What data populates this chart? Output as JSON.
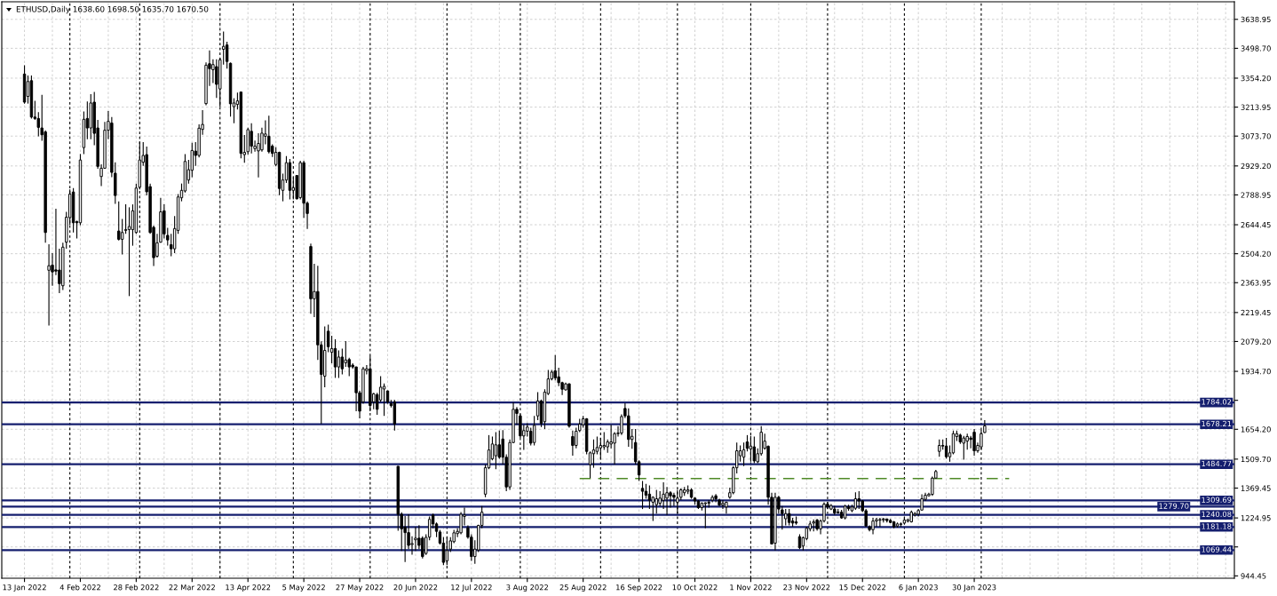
{
  "chart_data": {
    "type": "candlestick",
    "title": "ETHUSD,Daily 1638.60 1698.50 1635.70 1670.50",
    "color": "#000000",
    "categories": [
      "13 Jan 2022",
      null,
      null,
      null,
      null,
      null,
      null,
      null,
      null,
      null,
      null,
      null,
      null,
      null,
      null,
      null,
      "4 Feb 2022",
      null,
      null,
      null,
      null,
      null,
      null,
      null,
      null,
      null,
      null,
      null,
      null,
      null,
      null,
      null,
      "28 Feb 2022",
      null,
      null,
      null,
      null,
      null,
      null,
      null,
      null,
      null,
      null,
      null,
      null,
      null,
      null,
      null,
      "22 Mar 2022",
      null,
      null,
      null,
      null,
      null,
      null,
      null,
      null,
      null,
      null,
      null,
      null,
      null,
      null,
      null,
      "13 Apr 2022",
      null,
      null,
      null,
      null,
      null,
      null,
      null,
      null,
      null,
      null,
      null,
      null,
      null,
      null,
      null,
      "5 May 2022",
      null,
      null,
      null,
      null,
      null,
      null,
      null,
      null,
      null,
      null,
      null,
      null,
      null,
      null,
      null,
      "27 May 2022",
      null,
      null,
      null,
      null,
      null,
      null,
      null,
      null,
      null,
      null,
      null,
      null,
      null,
      null,
      null,
      "20 Jun 2022",
      null,
      null,
      null,
      null,
      null,
      null,
      null,
      null,
      null,
      null,
      null,
      null,
      null,
      null,
      null,
      "12 Jul 2022",
      null,
      null,
      null,
      null,
      null,
      null,
      null,
      null,
      null,
      null,
      null,
      null,
      null,
      null,
      null,
      "3 Aug 2022",
      null,
      null,
      null,
      null,
      null,
      null,
      null,
      null,
      null,
      null,
      null,
      null,
      null,
      null,
      null,
      "25 Aug 2022",
      null,
      null,
      null,
      null,
      null,
      null,
      null,
      null,
      null,
      null,
      null,
      null,
      null,
      null,
      null,
      "16 Sep 2022",
      null,
      null,
      null,
      null,
      null,
      null,
      null,
      null,
      null,
      null,
      null,
      null,
      null,
      null,
      null,
      "10 Oct 2022",
      null,
      null,
      null,
      null,
      null,
      null,
      null,
      null,
      null,
      null,
      null,
      null,
      null,
      null,
      null,
      "1 Nov 2022",
      null,
      null,
      null,
      null,
      null,
      null,
      null,
      null,
      null,
      null,
      null,
      null,
      null,
      null,
      null,
      "23 Nov 2022",
      null,
      null,
      null,
      null,
      null,
      null,
      null,
      null,
      null,
      null,
      null,
      null,
      null,
      null,
      null,
      "15 Dec 2022",
      null,
      null,
      null,
      null,
      null,
      null,
      null,
      null,
      null,
      null,
      null,
      null,
      null,
      null,
      null,
      "6 Jan 2023",
      null,
      null,
      null,
      null,
      null,
      null,
      null,
      null,
      null,
      null,
      null,
      null,
      null,
      null,
      null,
      "30 Jan 2023",
      null,
      null,
      null,
      null,
      null,
      null,
      null,
      null,
      null,
      null,
      null,
      null,
      null,
      null,
      null,
      null,
      null,
      null,
      null,
      null,
      null,
      null,
      null,
      null,
      null,
      null,
      null,
      null,
      null,
      null,
      null,
      null,
      null,
      null,
      null,
      null,
      null,
      null,
      null,
      null,
      null,
      null,
      null,
      null,
      null,
      null,
      null,
      null,
      null,
      null,
      null,
      null,
      null,
      null,
      null,
      null,
      null,
      null,
      null,
      null,
      null,
      null,
      null,
      null,
      null,
      null,
      null,
      null,
      null,
      null,
      null,
      null,
      null,
      null
    ],
    "ohlc": [
      [
        3374,
        3417,
        3231,
        3238
      ],
      [
        3266,
        3367,
        3231,
        3338
      ],
      [
        3342,
        3367,
        3159,
        3166
      ],
      [
        3166,
        3245,
        3152,
        3159
      ],
      [
        3159,
        3190,
        3073,
        3116
      ],
      [
        3113,
        3274,
        3051,
        3080
      ],
      [
        3094,
        3101,
        2557,
        2607
      ],
      [
        2424,
        2550,
        2156,
        2446
      ],
      [
        2449,
        2507,
        2349,
        2416
      ],
      [
        2426,
        2722,
        2400,
        2420
      ],
      [
        2425,
        2528,
        2313,
        2359
      ],
      [
        2349,
        2557,
        2328,
        2536
      ],
      [
        2560,
        2707,
        2528,
        2681
      ],
      [
        2679,
        2815,
        2643,
        2793
      ],
      [
        2803,
        2822,
        2607,
        2654
      ],
      [
        2660,
        2664,
        2578,
        2654
      ],
      [
        2654,
        2987,
        2642,
        2958
      ],
      [
        3018,
        3193,
        2987,
        3155
      ],
      [
        3159,
        3241,
        3059,
        3113
      ],
      [
        3113,
        3277,
        3059,
        3234
      ],
      [
        3238,
        3288,
        3030,
        3087
      ],
      [
        3113,
        3152,
        2915,
        2927
      ],
      [
        2878,
        2937,
        2832,
        2918
      ],
      [
        2918,
        3142,
        2915,
        3102
      ],
      [
        3102,
        3195,
        3059,
        3145
      ],
      [
        3137,
        3166,
        2875,
        2898
      ],
      [
        2894,
        2947,
        2746,
        2786
      ],
      [
        2614,
        2758,
        2568,
        2574
      ],
      [
        2574,
        2672,
        2500,
        2607
      ],
      [
        2617,
        2743,
        2600,
        2621
      ],
      [
        2621,
        2729,
        2299,
        2636
      ],
      [
        2621,
        2743,
        2543,
        2712
      ],
      [
        2607,
        2844,
        2600,
        2822
      ],
      [
        2826,
        3047,
        2815,
        2958
      ],
      [
        2947,
        3044,
        2930,
        2980
      ],
      [
        2984,
        3023,
        2786,
        2804
      ],
      [
        2829,
        2844,
        2600,
        2607
      ],
      [
        2632,
        2640,
        2445,
        2485
      ],
      [
        2492,
        2600,
        2485,
        2557
      ],
      [
        2560,
        2775,
        2557,
        2707
      ],
      [
        2712,
        2743,
        2578,
        2600
      ],
      [
        2593,
        2629,
        2543,
        2571
      ],
      [
        2548,
        2600,
        2492,
        2528
      ],
      [
        2528,
        2686,
        2507,
        2626
      ],
      [
        2617,
        2793,
        2600,
        2779
      ],
      [
        2775,
        2844,
        2758,
        2811
      ],
      [
        2808,
        2987,
        2801,
        2951
      ],
      [
        2861,
        2958,
        2844,
        2911
      ],
      [
        2908,
        3041,
        2875,
        3004
      ],
      [
        3001,
        3044,
        2930,
        2980
      ],
      [
        2980,
        3130,
        2970,
        3112
      ],
      [
        3106,
        3199,
        3080,
        3130
      ],
      [
        3231,
        3431,
        3223,
        3417
      ],
      [
        3424,
        3489,
        3317,
        3400
      ],
      [
        3395,
        3446,
        3331,
        3420
      ],
      [
        3410,
        3446,
        3259,
        3324
      ],
      [
        3302,
        3453,
        3216,
        3443
      ],
      [
        3494,
        3580,
        3420,
        3508
      ],
      [
        3515,
        3530,
        3400,
        3435
      ],
      [
        3426,
        3430,
        3168,
        3230
      ],
      [
        3216,
        3257,
        3136,
        3234
      ],
      [
        3227,
        3284,
        3203,
        3244
      ],
      [
        3287,
        3290,
        2966,
        2990
      ],
      [
        2984,
        3079,
        2945,
        2995
      ],
      [
        2998,
        3114,
        2984,
        3105
      ],
      [
        3097,
        3136,
        2990,
        3025
      ],
      [
        3013,
        3052,
        2998,
        3025
      ],
      [
        3002,
        3088,
        2874,
        3038
      ],
      [
        3007,
        3114,
        2998,
        3088
      ],
      [
        3073,
        3150,
        3034,
        3084
      ],
      [
        3073,
        3173,
        2990,
        2998
      ],
      [
        3025,
        3034,
        2972,
        2990
      ],
      [
        2936,
        3020,
        2927,
        2995
      ],
      [
        2995,
        2998,
        2788,
        2820
      ],
      [
        2811,
        2892,
        2758,
        2861
      ],
      [
        2861,
        2977,
        2847,
        2945
      ],
      [
        2945,
        2963,
        2767,
        2811
      ],
      [
        2811,
        2874,
        2767,
        2824
      ],
      [
        2883,
        2885,
        2767,
        2770
      ],
      [
        2776,
        2954,
        2767,
        2945
      ],
      [
        2945,
        2954,
        2678,
        2749
      ],
      [
        2749,
        2758,
        2624,
        2699
      ],
      [
        2539,
        2553,
        2214,
        2286
      ],
      [
        2286,
        2455,
        2197,
        2321
      ],
      [
        2321,
        2446,
        1990,
        2063
      ],
      [
        2063,
        2080,
        1680,
        1920
      ],
      [
        1911,
        2152,
        1858,
        2036
      ],
      [
        2129,
        2161,
        2027,
        2054
      ],
      [
        2027,
        2107,
        1974,
        2045
      ],
      [
        2045,
        2090,
        1903,
        1956
      ],
      [
        1956,
        2036,
        1903,
        2004
      ],
      [
        2004,
        2045,
        1920,
        1947
      ],
      [
        1976,
        2081,
        1956,
        1990
      ],
      [
        1992,
        2001,
        1911,
        1956
      ],
      [
        1965,
        1974,
        1947,
        1956
      ],
      [
        1956,
        1958,
        1742,
        1831
      ],
      [
        1831,
        1840,
        1707,
        1742
      ],
      [
        1787,
        1956,
        1778,
        1947
      ],
      [
        1938,
        1965,
        1920,
        1947
      ],
      [
        1947,
        2009,
        1742,
        1769
      ],
      [
        1787,
        1831,
        1751,
        1826
      ],
      [
        1822,
        1831,
        1724,
        1751
      ],
      [
        1796,
        1911,
        1787,
        1858
      ],
      [
        1849,
        1876,
        1719,
        1862
      ],
      [
        1840,
        1842,
        1778,
        1787
      ],
      [
        1778,
        1796,
        1760,
        1769
      ],
      [
        1787,
        1796,
        1648,
        1680
      ],
      [
        1475,
        1476,
        1163,
        1243
      ],
      [
        1243,
        1252,
        1065,
        1172
      ],
      [
        1181,
        1234,
        1012,
        1154
      ],
      [
        1154,
        1243,
        1074,
        1092
      ],
      [
        1096,
        1136,
        1047,
        1101
      ],
      [
        1119,
        1181,
        1065,
        1127
      ],
      [
        1127,
        1190,
        1074,
        1092
      ],
      [
        1127,
        1136,
        1029,
        1038
      ],
      [
        1053,
        1146,
        1046,
        1131
      ],
      [
        1132,
        1232,
        1117,
        1218
      ],
      [
        1239,
        1246,
        1174,
        1196
      ],
      [
        1196,
        1203,
        1132,
        1160
      ],
      [
        1157,
        1167,
        1096,
        1103
      ],
      [
        1103,
        1132,
        996,
        1010
      ],
      [
        1017,
        1132,
        996,
        1067
      ],
      [
        1074,
        1132,
        1060,
        1114
      ],
      [
        1110,
        1167,
        1103,
        1153
      ],
      [
        1149,
        1175,
        1132,
        1160
      ],
      [
        1153,
        1253,
        1146,
        1243
      ],
      [
        1232,
        1275,
        1189,
        1239
      ],
      [
        1177,
        1189,
        1124,
        1132
      ],
      [
        1132,
        1146,
        1017,
        1038
      ],
      [
        1038,
        1117,
        1003,
        1074
      ],
      [
        1070,
        1192,
        1060,
        1189
      ],
      [
        1189,
        1282,
        1175,
        1253
      ],
      [
        1340,
        1483,
        1325,
        1468
      ],
      [
        1468,
        1626,
        1461,
        1554
      ],
      [
        1511,
        1619,
        1504,
        1583
      ],
      [
        1526,
        1640,
        1461,
        1579
      ],
      [
        1579,
        1648,
        1511,
        1519
      ],
      [
        1607,
        1650,
        1483,
        1519
      ],
      [
        1519,
        1533,
        1354,
        1375
      ],
      [
        1375,
        1605,
        1361,
        1590
      ],
      [
        1590,
        1784,
        1587,
        1751
      ],
      [
        1751,
        1762,
        1676,
        1731
      ],
      [
        1719,
        1727,
        1612,
        1622
      ],
      [
        1622,
        1676,
        1554,
        1648
      ],
      [
        1645,
        1683,
        1619,
        1665
      ],
      [
        1645,
        1662,
        1576,
        1587
      ],
      [
        1590,
        1719,
        1576,
        1673
      ],
      [
        1719,
        1834,
        1698,
        1791
      ],
      [
        1791,
        1798,
        1665,
        1683
      ],
      [
        1691,
        1848,
        1655,
        1834
      ],
      [
        1827,
        1941,
        1820,
        1898
      ],
      [
        1898,
        1941,
        1891,
        1931
      ],
      [
        1937,
        2013,
        1891,
        1903
      ],
      [
        1908,
        1952,
        1863,
        1880
      ],
      [
        1880,
        1884,
        1820,
        1848
      ],
      [
        1845,
        1880,
        1841,
        1874
      ],
      [
        1874,
        1877,
        1662,
        1669
      ],
      [
        1619,
        1648,
        1526,
        1576
      ],
      [
        1576,
        1662,
        1562,
        1645
      ],
      [
        1648,
        1705,
        1640,
        1679
      ],
      [
        1676,
        1719,
        1662,
        1705
      ],
      [
        1705,
        1708,
        1533,
        1547
      ],
      [
        1483,
        1547,
        1418,
        1540
      ],
      [
        1536,
        1605,
        1468,
        1554
      ],
      [
        1547,
        1619,
        1533,
        1566
      ],
      [
        1564,
        1612,
        1511,
        1576
      ],
      [
        1569,
        1640,
        1554,
        1576
      ],
      [
        1569,
        1605,
        1540,
        1593
      ],
      [
        1583,
        1676,
        1562,
        1593
      ],
      [
        1587,
        1640,
        1483,
        1633
      ],
      [
        1633,
        1669,
        1619,
        1636
      ],
      [
        1636,
        1726,
        1626,
        1716
      ],
      [
        1755,
        1780,
        1708,
        1719
      ],
      [
        1719,
        1755,
        1569,
        1605
      ],
      [
        1605,
        1655,
        1560,
        1620
      ],
      [
        1590,
        1655,
        1483,
        1497
      ],
      [
        1497,
        1504,
        1404,
        1433
      ],
      [
        1368,
        1404,
        1268,
        1354
      ],
      [
        1354,
        1390,
        1318,
        1335
      ],
      [
        1340,
        1382,
        1268,
        1311
      ],
      [
        1301,
        1330,
        1210,
        1325
      ],
      [
        1289,
        1361,
        1246,
        1318
      ],
      [
        1296,
        1354,
        1282,
        1321
      ],
      [
        1310,
        1397,
        1268,
        1340
      ],
      [
        1321,
        1375,
        1239,
        1347
      ],
      [
        1347,
        1354,
        1275,
        1332
      ],
      [
        1335,
        1347,
        1282,
        1325
      ],
      [
        1301,
        1361,
        1246,
        1321
      ],
      [
        1325,
        1368,
        1311,
        1361
      ],
      [
        1347,
        1375,
        1332,
        1361
      ],
      [
        1354,
        1382,
        1340,
        1361
      ],
      [
        1361,
        1368,
        1318,
        1325
      ],
      [
        1321,
        1325,
        1289,
        1307
      ],
      [
        1307,
        1311,
        1268,
        1275
      ],
      [
        1275,
        1301,
        1261,
        1296
      ],
      [
        1294,
        1301,
        1175,
        1298
      ],
      [
        1296,
        1311,
        1275,
        1301
      ],
      [
        1311,
        1335,
        1301,
        1325
      ],
      [
        1332,
        1340,
        1301,
        1318
      ],
      [
        1311,
        1318,
        1282,
        1287
      ],
      [
        1287,
        1311,
        1268,
        1296
      ],
      [
        1278,
        1304,
        1246,
        1301
      ],
      [
        1325,
        1372,
        1318,
        1347
      ],
      [
        1347,
        1476,
        1339,
        1468
      ],
      [
        1468,
        1590,
        1440,
        1550
      ],
      [
        1526,
        1576,
        1497,
        1550
      ],
      [
        1519,
        1590,
        1476,
        1555
      ],
      [
        1593,
        1626,
        1547,
        1562
      ],
      [
        1559,
        1622,
        1497,
        1573
      ],
      [
        1569,
        1619,
        1490,
        1501
      ],
      [
        1497,
        1562,
        1490,
        1536
      ],
      [
        1536,
        1669,
        1526,
        1640
      ],
      [
        1562,
        1633,
        1555,
        1597
      ],
      [
        1572,
        1576,
        1289,
        1325
      ],
      [
        1325,
        1347,
        1096,
        1099
      ],
      [
        1103,
        1347,
        1067,
        1325
      ],
      [
        1325,
        1332,
        1246,
        1268
      ],
      [
        1264,
        1282,
        1168,
        1246
      ],
      [
        1221,
        1268,
        1189,
        1246
      ],
      [
        1246,
        1268,
        1189,
        1203
      ],
      [
        1210,
        1225,
        1182,
        1200
      ],
      [
        1206,
        1232,
        1192,
        1200
      ],
      [
        1134,
        1146,
        1074,
        1081
      ],
      [
        1089,
        1135,
        1067,
        1129
      ],
      [
        1125,
        1182,
        1117,
        1175
      ],
      [
        1172,
        1210,
        1160,
        1196
      ],
      [
        1200,
        1218,
        1160,
        1206
      ],
      [
        1215,
        1220,
        1163,
        1172
      ],
      [
        1172,
        1218,
        1146,
        1210
      ],
      [
        1211,
        1301,
        1203,
        1292
      ],
      [
        1292,
        1303,
        1268,
        1278
      ],
      [
        1268,
        1292,
        1263,
        1285
      ],
      [
        1268,
        1282,
        1239,
        1249
      ],
      [
        1254,
        1268,
        1246,
        1250
      ],
      [
        1253,
        1264,
        1221,
        1225
      ],
      [
        1225,
        1289,
        1218,
        1282
      ],
      [
        1278,
        1289,
        1260,
        1270
      ],
      [
        1260,
        1289,
        1253,
        1278
      ],
      [
        1272,
        1349,
        1264,
        1318
      ],
      [
        1318,
        1354,
        1268,
        1307
      ],
      [
        1307,
        1311,
        1253,
        1260
      ],
      [
        1260,
        1268,
        1182,
        1186
      ],
      [
        1182,
        1189,
        1160,
        1168
      ],
      [
        1168,
        1225,
        1146,
        1210
      ],
      [
        1210,
        1225,
        1182,
        1217
      ],
      [
        1214,
        1225,
        1182,
        1217
      ],
      [
        1215,
        1225,
        1203,
        1220
      ],
      [
        1220,
        1221,
        1203,
        1212
      ],
      [
        1213,
        1220,
        1200,
        1203
      ],
      [
        1206,
        1210,
        1175,
        1182
      ],
      [
        1186,
        1203,
        1178,
        1196
      ],
      [
        1196,
        1203,
        1182,
        1194
      ],
      [
        1200,
        1225,
        1192,
        1215
      ],
      [
        1210,
        1220,
        1203,
        1217
      ],
      [
        1206,
        1261,
        1203,
        1253
      ],
      [
        1239,
        1253,
        1232,
        1246
      ],
      [
        1243,
        1268,
        1232,
        1261
      ],
      [
        1263,
        1339,
        1261,
        1318
      ],
      [
        1315,
        1347,
        1307,
        1335
      ],
      [
        1332,
        1347,
        1330,
        1340
      ],
      [
        1339,
        1425,
        1332,
        1418
      ],
      [
        1418,
        1458,
        1415,
        1450
      ],
      [
        1547,
        1605,
        1521,
        1576
      ],
      [
        1576,
        1605,
        1555,
        1573
      ],
      [
        1573,
        1612,
        1511,
        1521
      ],
      [
        1521,
        1576,
        1497,
        1540
      ],
      [
        1540,
        1648,
        1533,
        1633
      ],
      [
        1619,
        1648,
        1597,
        1633
      ],
      [
        1626,
        1633,
        1583,
        1593
      ],
      [
        1587,
        1622,
        1507,
        1612
      ],
      [
        1597,
        1633,
        1555,
        1619
      ],
      [
        1612,
        1622,
        1562,
        1605
      ],
      [
        1640,
        1655,
        1526,
        1550
      ],
      [
        1550,
        1590,
        1540,
        1576
      ],
      [
        1569,
        1651,
        1555,
        1633
      ],
      [
        1638.6,
        1698.5,
        1635.7,
        1670.5
      ],
      null,
      null,
      null,
      null,
      null,
      null,
      null,
      null,
      null,
      null,
      null,
      null,
      null,
      null,
      null,
      null,
      null,
      null,
      null,
      null,
      null,
      null,
      null,
      null,
      null,
      null,
      null,
      null,
      null,
      null,
      null,
      null,
      null,
      null,
      null,
      null,
      null,
      null,
      null,
      null,
      null,
      null,
      null,
      null,
      null,
      null,
      null,
      null,
      null,
      null,
      null,
      null,
      null,
      null,
      null,
      null,
      null,
      null,
      null,
      null,
      null,
      null,
      null,
      null,
      null,
      null,
      null,
      null,
      null,
      null,
      null
    ],
    "series": [
      {
        "type": "line",
        "color": "#4f8a26",
        "line_style": "dashed",
        "values": [
          null,
          null,
          null,
          null,
          null,
          null,
          null,
          null,
          null,
          null,
          null,
          null,
          null,
          null,
          null,
          null,
          null,
          null,
          null,
          null,
          null,
          null,
          null,
          null,
          null,
          null,
          null,
          null,
          null,
          null,
          null,
          null,
          null,
          null,
          null,
          null,
          null,
          null,
          null,
          null,
          null,
          null,
          null,
          null,
          null,
          null,
          null,
          null,
          null,
          null,
          null,
          null,
          null,
          null,
          null,
          null,
          null,
          null,
          null,
          null,
          null,
          null,
          null,
          null,
          null,
          null,
          null,
          null,
          null,
          null,
          null,
          null,
          null,
          null,
          null,
          null,
          null,
          null,
          null,
          null,
          null,
          null,
          null,
          null,
          null,
          null,
          null,
          null,
          null,
          null,
          null,
          null,
          null,
          null,
          null,
          null,
          null,
          null,
          null,
          null,
          null,
          null,
          null,
          null,
          null,
          null,
          null,
          null,
          null,
          null,
          null,
          null,
          null,
          null,
          null,
          null,
          null,
          null,
          null,
          null,
          null,
          null,
          null,
          null,
          null,
          null,
          null,
          null,
          null,
          null,
          null,
          null,
          null,
          null,
          null,
          null,
          null,
          null,
          null,
          null,
          null,
          null,
          null,
          null,
          null,
          null,
          null,
          null,
          null,
          null,
          null,
          null,
          null,
          null,
          null,
          null,
          null,
          null,
          null,
          1416,
          1416,
          1416,
          1416,
          1416,
          1416,
          1416,
          1416,
          1416,
          1416,
          1416,
          1416,
          1416,
          1416,
          1416,
          1416,
          1416,
          1416,
          1416,
          1416,
          1416,
          1416,
          1416,
          1416,
          1416,
          1416,
          1416,
          1416,
          1416,
          1416,
          1416,
          1416,
          1416,
          1416,
          1416,
          1416,
          1416,
          1416,
          1416,
          1416,
          1416,
          1416,
          1416,
          1416,
          1416,
          1416,
          1416,
          1416,
          1416,
          1416,
          1416,
          1416,
          1416,
          1416,
          1416,
          1416,
          1416,
          1416,
          1416,
          1416,
          1416,
          1416,
          1416,
          1416,
          1416,
          1416,
          1416,
          1416,
          1416,
          1416,
          1416,
          1416,
          1416,
          1416,
          1416,
          1416,
          1416,
          1416,
          1416,
          1416,
          1416,
          1416,
          1416,
          1416,
          1416,
          1416,
          1416,
          1416,
          1416,
          1416,
          1416,
          1416,
          1416,
          1416,
          1416,
          1416,
          1416,
          1416,
          1416,
          1416,
          1416,
          1416,
          1416,
          1416,
          1416,
          1416,
          1416,
          1416,
          1416,
          1416,
          1416,
          1416,
          1416,
          1416,
          1416,
          1416,
          1416,
          1416,
          1416,
          1416,
          1416,
          1416,
          1416,
          1416,
          null,
          null,
          null,
          null,
          null,
          null,
          null,
          null,
          null,
          null,
          null,
          null,
          null,
          null,
          null,
          null,
          null,
          null,
          null,
          null,
          null,
          null,
          null,
          null,
          null,
          null,
          null,
          null,
          null,
          null,
          null,
          null,
          null,
          null,
          null,
          null,
          null,
          null,
          null,
          null,
          null,
          null,
          null,
          null,
          null,
          null,
          null,
          null,
          null,
          null,
          null,
          null,
          null,
          null,
          null,
          null,
          null,
          null,
          null,
          null,
          null,
          null,
          null,
          null
        ]
      }
    ],
    "ylim": [
      933,
      3724
    ],
    "yticks": [
      {
        "value": 3638.95,
        "label": "3638.95"
      },
      {
        "value": 3498.7,
        "label": "3498.70"
      },
      {
        "value": 3354.2,
        "label": "3354.20"
      },
      {
        "value": 3213.95,
        "label": "3213.95"
      },
      {
        "value": 3073.7,
        "label": "3073.70"
      },
      {
        "value": 2929.2,
        "label": "2929.20"
      },
      {
        "value": 2788.95,
        "label": "2788.95"
      },
      {
        "value": 2644.45,
        "label": "2644.45"
      },
      {
        "value": 2504.2,
        "label": "2504.20"
      },
      {
        "value": 2363.95,
        "label": "2363.95"
      },
      {
        "value": 2219.45,
        "label": "2219.45"
      },
      {
        "value": 2079.2,
        "label": "2079.20"
      },
      {
        "value": 1934.7,
        "label": "1934.70"
      },
      {
        "value": 1794.45,
        "label": null
      },
      {
        "value": 1654.2,
        "label": "1654.20"
      },
      {
        "value": 1509.7,
        "label": "1509.70"
      },
      {
        "value": 1369.45,
        "label": "1369.45"
      },
      {
        "value": 1224.95,
        "label": "1224.95"
      },
      {
        "value": 1084.7,
        "label": null
      },
      {
        "value": 944.45,
        "label": "944.45"
      }
    ],
    "grid": true,
    "ref_lines": [
      {
        "axis": "y",
        "value": 1784.02,
        "label": "1784.02",
        "color": "#141e6e",
        "line_style": "solid"
      },
      {
        "axis": "y",
        "value": 1678.21,
        "label": "1678.21",
        "color": "#141e6e",
        "line_style": "solid"
      },
      {
        "axis": "y",
        "value": 1484.77,
        "label": "1484.77",
        "color": "#141e6e",
        "line_style": "solid"
      },
      {
        "axis": "y",
        "value": 1309.69,
        "label": "1309.69",
        "color": "#141e6e",
        "line_style": "solid"
      },
      {
        "axis": "y",
        "value": 1279.7,
        "label": "1279.70",
        "color": "#141e6e",
        "line_style": "solid"
      },
      {
        "axis": "y",
        "value": 1240.08,
        "label": "1240.08",
        "color": "#141e6e",
        "line_style": "solid"
      },
      {
        "axis": "y",
        "value": 1181.18,
        "label": "1181.18",
        "color": "#141e6e",
        "line_style": "solid"
      },
      {
        "axis": "y",
        "value": 1069.44,
        "label": "1069.44",
        "color": "#141e6e",
        "line_style": "solid"
      }
    ]
  }
}
